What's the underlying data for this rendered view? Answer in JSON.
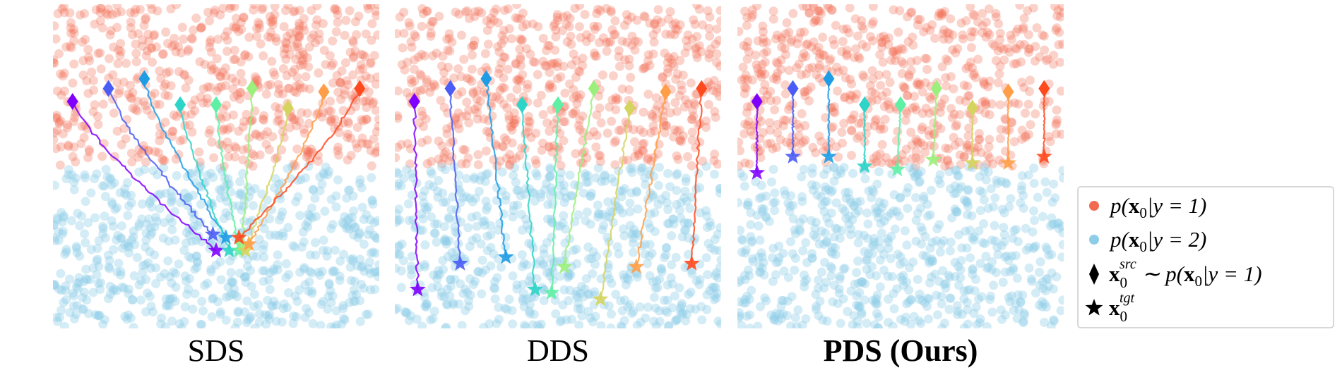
{
  "panels": [
    {
      "title": "SDS"
    },
    {
      "title": "DDS"
    },
    {
      "title": "PDS (Ours)"
    }
  ],
  "legend": {
    "items": [
      {
        "parts": [
          "p(",
          "x",
          "0",
          "|y = 1)"
        ]
      },
      {
        "parts": [
          "p(",
          "x",
          "0",
          "|y = 2)"
        ]
      },
      {
        "parts": [
          "x",
          "0",
          "src",
          " ∼ p(",
          "x",
          "0",
          "|y = 1)"
        ]
      },
      {
        "parts": [
          "x",
          "0",
          "tgt"
        ]
      }
    ]
  }
}
